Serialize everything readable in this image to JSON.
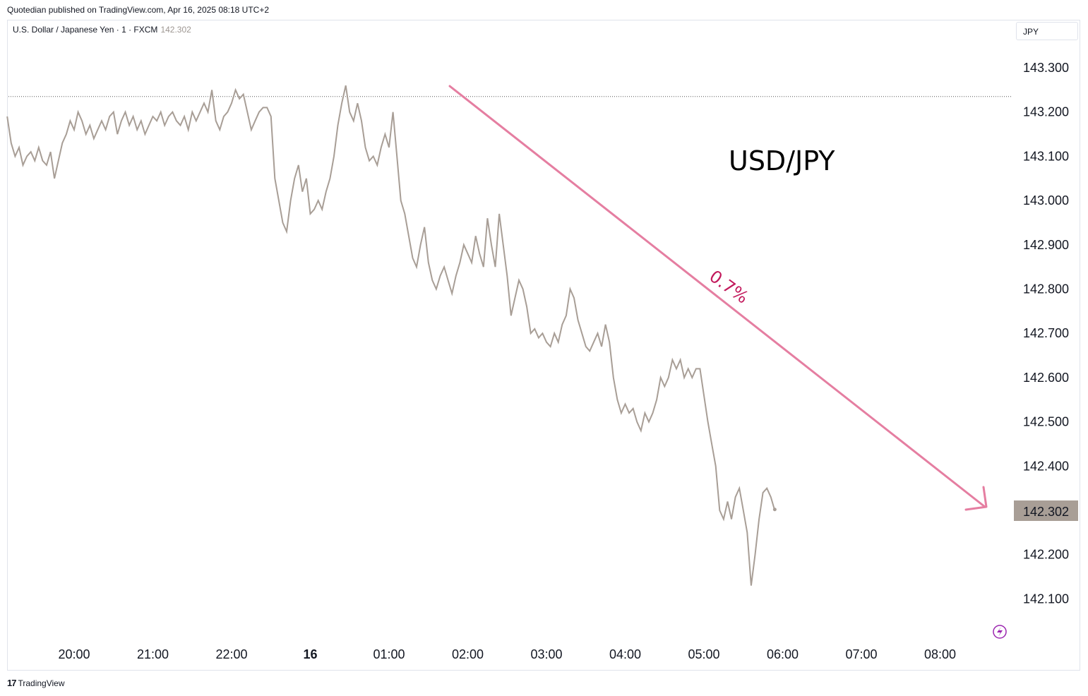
{
  "header": {
    "publisher": "Quotedian published on TradingView.com, Apr 16, 2025 08:18 UTC+2"
  },
  "symbol": {
    "description": "U.S. Dollar / Japanese Yen · 1 · FXCM",
    "last": "142.302"
  },
  "currency_label": "JPY",
  "footer": {
    "brand": "TradingView"
  },
  "colors": {
    "price_line": "#a89e96",
    "arrow": "#e57ea1",
    "pct_text": "#c2185b",
    "badge": "#a89e96"
  },
  "chart_data": {
    "type": "line",
    "ylim": [
      142.0,
      143.38
    ],
    "y_ticks": [
      "143.300",
      "143.200",
      "143.100",
      "143.000",
      "142.900",
      "142.800",
      "142.700",
      "142.600",
      "142.500",
      "142.400",
      "142.200",
      "142.100"
    ],
    "x_ticks": [
      {
        "label": "20:00",
        "bold": false
      },
      {
        "label": "21:00",
        "bold": false
      },
      {
        "label": "22:00",
        "bold": false
      },
      {
        "label": "16",
        "bold": true
      },
      {
        "label": "01:00",
        "bold": false
      },
      {
        "label": "02:00",
        "bold": false
      },
      {
        "label": "03:00",
        "bold": false
      },
      {
        "label": "04:00",
        "bold": false
      },
      {
        "label": "05:00",
        "bold": false
      },
      {
        "label": "06:00",
        "bold": false
      },
      {
        "label": "07:00",
        "bold": false
      },
      {
        "label": "08:00",
        "bold": false
      }
    ],
    "last_price": 142.302,
    "reference_level": 143.235,
    "annotations": {
      "title": "USD/JPY",
      "change": "0.7%"
    },
    "series": [
      {
        "values": [
          [
            0.0,
            143.19
          ],
          [
            0.05,
            143.13
          ],
          [
            0.1,
            143.1
          ],
          [
            0.15,
            143.12
          ],
          [
            0.2,
            143.08
          ],
          [
            0.25,
            143.1
          ],
          [
            0.3,
            143.11
          ],
          [
            0.35,
            143.09
          ],
          [
            0.4,
            143.12
          ],
          [
            0.45,
            143.09
          ],
          [
            0.5,
            143.08
          ],
          [
            0.55,
            143.11
          ],
          [
            0.6,
            143.05
          ],
          [
            0.65,
            143.09
          ],
          [
            0.7,
            143.13
          ],
          [
            0.75,
            143.15
          ],
          [
            0.8,
            143.18
          ],
          [
            0.85,
            143.16
          ],
          [
            0.9,
            143.2
          ],
          [
            0.95,
            143.18
          ],
          [
            1.0,
            143.15
          ],
          [
            1.05,
            143.17
          ],
          [
            1.1,
            143.14
          ],
          [
            1.15,
            143.16
          ],
          [
            1.2,
            143.18
          ],
          [
            1.25,
            143.16
          ],
          [
            1.3,
            143.19
          ],
          [
            1.35,
            143.2
          ],
          [
            1.4,
            143.15
          ],
          [
            1.45,
            143.18
          ],
          [
            1.5,
            143.2
          ],
          [
            1.55,
            143.17
          ],
          [
            1.6,
            143.19
          ],
          [
            1.65,
            143.16
          ],
          [
            1.7,
            143.18
          ],
          [
            1.75,
            143.15
          ],
          [
            1.8,
            143.17
          ],
          [
            1.85,
            143.19
          ],
          [
            1.9,
            143.18
          ],
          [
            1.95,
            143.2
          ],
          [
            2.0,
            143.17
          ],
          [
            2.05,
            143.19
          ],
          [
            2.1,
            143.2
          ],
          [
            2.15,
            143.18
          ],
          [
            2.2,
            143.17
          ],
          [
            2.25,
            143.19
          ],
          [
            2.3,
            143.16
          ],
          [
            2.35,
            143.2
          ],
          [
            2.4,
            143.18
          ],
          [
            2.45,
            143.2
          ],
          [
            2.5,
            143.22
          ],
          [
            2.55,
            143.2
          ],
          [
            2.6,
            143.25
          ],
          [
            2.65,
            143.18
          ],
          [
            2.7,
            143.16
          ],
          [
            2.75,
            143.19
          ],
          [
            2.8,
            143.2
          ],
          [
            2.85,
            143.22
          ],
          [
            2.9,
            143.25
          ],
          [
            2.95,
            143.23
          ],
          [
            3.0,
            143.24
          ],
          [
            3.05,
            143.2
          ],
          [
            3.1,
            143.16
          ],
          [
            3.15,
            143.18
          ],
          [
            3.2,
            143.2
          ],
          [
            3.25,
            143.21
          ],
          [
            3.3,
            143.21
          ],
          [
            3.35,
            143.19
          ],
          [
            3.4,
            143.05
          ],
          [
            3.45,
            143.0
          ],
          [
            3.5,
            142.95
          ],
          [
            3.55,
            142.93
          ],
          [
            3.6,
            143.0
          ],
          [
            3.65,
            143.05
          ],
          [
            3.7,
            143.08
          ],
          [
            3.75,
            143.02
          ],
          [
            3.8,
            143.05
          ],
          [
            3.85,
            142.97
          ],
          [
            3.9,
            142.98
          ],
          [
            3.95,
            143.0
          ],
          [
            4.0,
            142.98
          ],
          [
            4.05,
            143.02
          ],
          [
            4.1,
            143.05
          ],
          [
            4.15,
            143.1
          ],
          [
            4.2,
            143.17
          ],
          [
            4.25,
            143.22
          ],
          [
            4.3,
            143.26
          ],
          [
            4.35,
            143.2
          ],
          [
            4.4,
            143.18
          ],
          [
            4.45,
            143.22
          ],
          [
            4.5,
            143.18
          ],
          [
            4.55,
            143.12
          ],
          [
            4.6,
            143.09
          ],
          [
            4.65,
            143.1
          ],
          [
            4.7,
            143.08
          ],
          [
            4.75,
            143.12
          ],
          [
            4.8,
            143.15
          ],
          [
            4.85,
            143.12
          ],
          [
            4.9,
            143.2
          ],
          [
            4.95,
            143.1
          ],
          [
            5.0,
            143.0
          ],
          [
            5.05,
            142.97
          ],
          [
            5.1,
            142.92
          ],
          [
            5.15,
            142.87
          ],
          [
            5.2,
            142.85
          ],
          [
            5.25,
            142.9
          ],
          [
            5.3,
            142.94
          ],
          [
            5.35,
            142.86
          ],
          [
            5.4,
            142.82
          ],
          [
            5.45,
            142.8
          ],
          [
            5.5,
            142.83
          ],
          [
            5.55,
            142.85
          ],
          [
            5.6,
            142.82
          ],
          [
            5.65,
            142.79
          ],
          [
            5.7,
            142.83
          ],
          [
            5.75,
            142.86
          ],
          [
            5.8,
            142.9
          ],
          [
            5.85,
            142.88
          ],
          [
            5.9,
            142.86
          ],
          [
            5.95,
            142.92
          ],
          [
            6.0,
            142.88
          ],
          [
            6.05,
            142.85
          ],
          [
            6.1,
            142.96
          ],
          [
            6.15,
            142.9
          ],
          [
            6.2,
            142.85
          ],
          [
            6.25,
            142.97
          ],
          [
            6.3,
            142.9
          ],
          [
            6.35,
            142.83
          ],
          [
            6.4,
            142.74
          ],
          [
            6.45,
            142.78
          ],
          [
            6.5,
            142.82
          ],
          [
            6.55,
            142.8
          ],
          [
            6.6,
            142.76
          ],
          [
            6.65,
            142.7
          ],
          [
            6.7,
            142.71
          ],
          [
            6.75,
            142.69
          ],
          [
            6.8,
            142.7
          ],
          [
            6.85,
            142.68
          ],
          [
            6.9,
            142.67
          ],
          [
            6.95,
            142.7
          ],
          [
            7.0,
            142.68
          ],
          [
            7.05,
            142.72
          ],
          [
            7.1,
            142.74
          ],
          [
            7.15,
            142.8
          ],
          [
            7.2,
            142.78
          ],
          [
            7.25,
            142.73
          ],
          [
            7.3,
            142.7
          ],
          [
            7.35,
            142.67
          ],
          [
            7.4,
            142.66
          ],
          [
            7.45,
            142.68
          ],
          [
            7.5,
            142.7
          ],
          [
            7.55,
            142.67
          ],
          [
            7.6,
            142.72
          ],
          [
            7.65,
            142.68
          ],
          [
            7.7,
            142.6
          ],
          [
            7.75,
            142.55
          ],
          [
            7.8,
            142.52
          ],
          [
            7.85,
            142.54
          ],
          [
            7.9,
            142.52
          ],
          [
            7.95,
            142.53
          ],
          [
            8.0,
            142.5
          ],
          [
            8.05,
            142.48
          ],
          [
            8.1,
            142.52
          ],
          [
            8.15,
            142.5
          ],
          [
            8.2,
            142.52
          ],
          [
            8.25,
            142.55
          ],
          [
            8.3,
            142.6
          ],
          [
            8.35,
            142.58
          ],
          [
            8.4,
            142.6
          ],
          [
            8.45,
            142.64
          ],
          [
            8.5,
            142.62
          ],
          [
            8.55,
            142.64
          ],
          [
            8.6,
            142.6
          ],
          [
            8.65,
            142.62
          ],
          [
            8.7,
            142.6
          ],
          [
            8.75,
            142.62
          ],
          [
            8.8,
            142.62
          ],
          [
            8.85,
            142.56
          ],
          [
            8.9,
            142.5
          ],
          [
            8.95,
            142.45
          ],
          [
            9.0,
            142.4
          ],
          [
            9.05,
            142.3
          ],
          [
            9.1,
            142.28
          ],
          [
            9.15,
            142.32
          ],
          [
            9.2,
            142.28
          ],
          [
            9.25,
            142.33
          ],
          [
            9.3,
            142.35
          ],
          [
            9.35,
            142.3
          ],
          [
            9.4,
            142.25
          ],
          [
            9.45,
            142.13
          ],
          [
            9.5,
            142.2
          ],
          [
            9.55,
            142.28
          ],
          [
            9.6,
            142.34
          ],
          [
            9.65,
            142.35
          ],
          [
            9.7,
            142.33
          ],
          [
            9.75,
            142.3
          ]
        ]
      }
    ]
  }
}
